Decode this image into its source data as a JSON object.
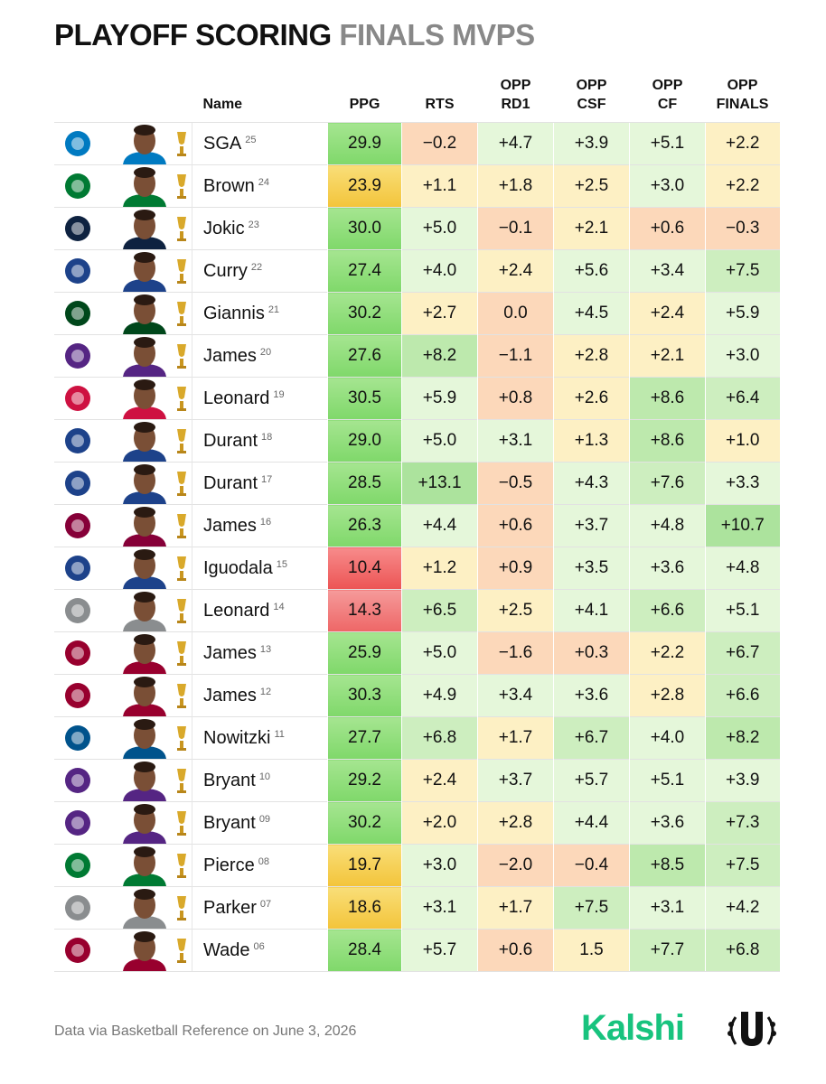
{
  "header": {
    "title_main": "PLAYOFF SCORING",
    "title_accent": "FINALS MVPS"
  },
  "table": {
    "columns": [
      [
        "Name"
      ],
      [
        "PPG"
      ],
      [
        "RTS"
      ],
      [
        "OPP",
        "RD1"
      ],
      [
        "OPP",
        "CSF"
      ],
      [
        "OPP",
        "CF"
      ],
      [
        "OPP",
        "FINALS"
      ]
    ],
    "rows": [
      {
        "name": "SGA",
        "year": "25",
        "values": [
          "29.9",
          "−0.2",
          "+4.7",
          "+3.9",
          "+5.1",
          "+2.2"
        ]
      },
      {
        "name": "Brown",
        "year": "24",
        "values": [
          "23.9",
          "+1.1",
          "+1.8",
          "+2.5",
          "+3.0",
          "+2.2"
        ]
      },
      {
        "name": "Jokic",
        "year": "23",
        "values": [
          "30.0",
          "+5.0",
          "−0.1",
          "+2.1",
          "+0.6",
          "−0.3"
        ]
      },
      {
        "name": "Curry",
        "year": "22",
        "values": [
          "27.4",
          "+4.0",
          "+2.4",
          "+5.6",
          "+3.4",
          "+7.5"
        ]
      },
      {
        "name": "Giannis",
        "year": "21",
        "values": [
          "30.2",
          "+2.7",
          "0.0",
          "+4.5",
          "+2.4",
          "+5.9"
        ]
      },
      {
        "name": "James",
        "year": "20",
        "values": [
          "27.6",
          "+8.2",
          "−1.1",
          "+2.8",
          "+2.1",
          "+3.0"
        ]
      },
      {
        "name": "Leonard",
        "year": "19",
        "values": [
          "30.5",
          "+5.9",
          "+0.8",
          "+2.6",
          "+8.6",
          "+6.4"
        ]
      },
      {
        "name": "Durant",
        "year": "18",
        "values": [
          "29.0",
          "+5.0",
          "+3.1",
          "+1.3",
          "+8.6",
          "+1.0"
        ]
      },
      {
        "name": "Durant",
        "year": "17",
        "values": [
          "28.5",
          "+13.1",
          "−0.5",
          "+4.3",
          "+7.6",
          "+3.3"
        ]
      },
      {
        "name": "James",
        "year": "16",
        "values": [
          "26.3",
          "+4.4",
          "+0.6",
          "+3.7",
          "+4.8",
          "+10.7"
        ]
      },
      {
        "name": "Iguodala",
        "year": "15",
        "values": [
          "10.4",
          "+1.2",
          "+0.9",
          "+3.5",
          "+3.6",
          "+4.8"
        ]
      },
      {
        "name": "Leonard",
        "year": "14",
        "values": [
          "14.3",
          "+6.5",
          "+2.5",
          "+4.1",
          "+6.6",
          "+5.1"
        ]
      },
      {
        "name": "James",
        "year": "13",
        "values": [
          "25.9",
          "+5.0",
          "−1.6",
          "+0.3",
          "+2.2",
          "+6.7"
        ]
      },
      {
        "name": "James",
        "year": "12",
        "values": [
          "30.3",
          "+4.9",
          "+3.4",
          "+3.6",
          "+2.8",
          "+6.6"
        ]
      },
      {
        "name": "Nowitzki",
        "year": "11",
        "values": [
          "27.7",
          "+6.8",
          "+1.7",
          "+6.7",
          "+4.0",
          "+8.2"
        ]
      },
      {
        "name": "Bryant",
        "year": "10",
        "values": [
          "29.2",
          "+2.4",
          "+3.7",
          "+5.7",
          "+5.1",
          "+3.9"
        ]
      },
      {
        "name": "Bryant",
        "year": "09",
        "values": [
          "30.2",
          "+2.0",
          "+2.8",
          "+4.4",
          "+3.6",
          "+7.3"
        ]
      },
      {
        "name": "Pierce",
        "year": "08",
        "values": [
          "19.7",
          "+3.0",
          "−2.0",
          "−0.4",
          "+8.5",
          "+7.5"
        ]
      },
      {
        "name": "Parker",
        "year": "07",
        "values": [
          "18.6",
          "+3.1",
          "+1.7",
          "+7.5",
          "+3.1",
          "+4.2"
        ]
      },
      {
        "name": "Wade",
        "year": "06",
        "values": [
          "28.4",
          "+5.7",
          "+0.6",
          "1.5",
          "+7.7",
          "+6.8"
        ]
      }
    ]
  },
  "footer": {
    "source": "Data via Basketball Reference on June 3, 2026",
    "brand": "Kalshi"
  }
}
